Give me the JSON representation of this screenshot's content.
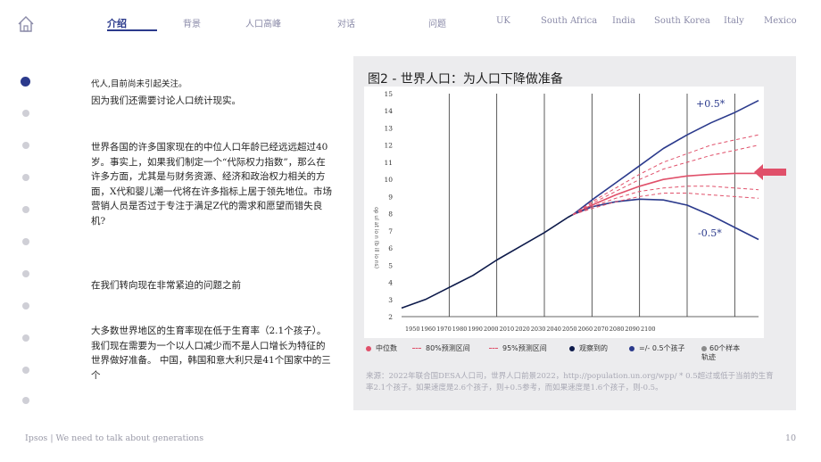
{
  "nav": {
    "items": [
      {
        "label": "介绍",
        "active": true
      },
      {
        "label": "背景",
        "active": false
      },
      {
        "label": "人口高峰",
        "active": false
      },
      {
        "label": "对话",
        "active": false
      },
      {
        "label": "问题",
        "active": false
      },
      {
        "label": "UK",
        "active": false
      },
      {
        "label": "South Africa",
        "active": false
      },
      {
        "label": "India",
        "active": false
      },
      {
        "label": "South Korea",
        "active": false
      },
      {
        "label": "Italy",
        "active": false
      },
      {
        "label": "Mexico",
        "active": false
      }
    ]
  },
  "left": {
    "p1a": "代人,目前尚未引起关注。",
    "p1b": "因为我们还需要讨论人口统计现实。",
    "p2": "世界各国的许多国家现在的中位人口年龄已经远远超过40岁。事实上，如果我们制定一个“代际权力指数”，那么在许多方面，尤其是与财务资源、经济和政治权力相关的方面，X代和婴儿潮一代将在许多指标上居于领先地位。市场营销人员是否过于专注于满足Z代的需求和愿望而错失良机?",
    "p3": "在我们转向现在非常紧迫的问题之前",
    "p4": "大多数世界地区的生育率现在低于生育率（2.1个孩子）。我们现在需要为一个以人口减少而不是人口增长为特征的世界做好准备。 中国，韩国和意大利只是41个国家中的三个"
  },
  "chart": {
    "title": "图2 - 世界人口：为人口下降做准备",
    "ylabel": "op ul at io n (b ill io ns)",
    "annot_plus": "+0.5*",
    "annot_minus": "-0.5*",
    "legend": [
      {
        "label": "中位数",
        "color": "#e0506a",
        "kind": "circle"
      },
      {
        "label": "80%预测区间",
        "color": "#e0506a",
        "kind": "dash"
      },
      {
        "label": "95%预测区间",
        "color": "#e0506a",
        "kind": "dash"
      },
      {
        "label": "观察到的",
        "color": "#0d1a4a",
        "kind": "circle"
      },
      {
        "label": "=/- 0.5个孩子",
        "color": "#2b3a8c",
        "kind": "circle"
      },
      {
        "label": "60个样本轨迹",
        "color": "#8a8a8a",
        "kind": "circle"
      }
    ],
    "source": "来源：2022年联合国DESA人口司，世界人口前景2022，http://population.un.org/wpp/ * 0.5超过或低于当前的生育率2.1个孩子。如果速度是2.6个孩子，则+0.5参考，而如果速度是1.6个孩子，则-0.5。"
  },
  "chart_data": {
    "type": "line",
    "title": "图2 - 世界人口：为人口下降做准备",
    "ylim": [
      2,
      15
    ],
    "xlim": [
      1950,
      2100
    ],
    "y_ticks": [
      2,
      3,
      4,
      5,
      6,
      7,
      8,
      9,
      10,
      11,
      12,
      13,
      14,
      15
    ],
    "x_ticks": [
      1950,
      1960,
      1970,
      1980,
      1990,
      2000,
      2010,
      2020,
      2030,
      2040,
      2050,
      2060,
      2070,
      2080,
      2090,
      2100
    ],
    "grid_x": true,
    "series": [
      {
        "name": "观察到的",
        "color": "#0d1a4a",
        "style": "solid",
        "x": [
          1950,
          1960,
          1970,
          1980,
          1990,
          2000,
          2010,
          2020,
          2022
        ],
        "y": [
          2.5,
          3.0,
          3.7,
          4.4,
          5.3,
          6.1,
          6.9,
          7.8,
          7.95
        ]
      },
      {
        "name": "中位数",
        "color": "#e0506a",
        "style": "solid",
        "x": [
          2022,
          2030,
          2040,
          2050,
          2060,
          2070,
          2080,
          2090,
          2100
        ],
        "y": [
          7.95,
          8.5,
          9.1,
          9.6,
          10.0,
          10.2,
          10.3,
          10.35,
          10.35
        ]
      },
      {
        "name": "+0.5*",
        "color": "#2b3a8c",
        "style": "solid",
        "x": [
          2022,
          2030,
          2040,
          2050,
          2060,
          2070,
          2080,
          2090,
          2100
        ],
        "y": [
          7.95,
          8.8,
          9.8,
          10.8,
          11.8,
          12.6,
          13.3,
          13.9,
          14.6
        ]
      },
      {
        "name": "-0.5*",
        "color": "#2b3a8c",
        "style": "solid",
        "x": [
          2022,
          2030,
          2040,
          2050,
          2060,
          2070,
          2080,
          2090,
          2100
        ],
        "y": [
          7.95,
          8.4,
          8.7,
          8.85,
          8.8,
          8.5,
          7.9,
          7.2,
          6.5
        ]
      },
      {
        "name": "80%预测区间",
        "color": "#e0506a",
        "style": "dashed",
        "x": [
          2022,
          2030,
          2040,
          2050,
          2060,
          2070,
          2080,
          2090,
          2100
        ],
        "y": [
          7.95,
          8.6,
          9.3,
          10.0,
          10.6,
          11.0,
          11.4,
          11.7,
          12.0
        ]
      },
      {
        "name": "80%预测区间",
        "color": "#e0506a",
        "style": "dashed",
        "x": [
          2022,
          2030,
          2040,
          2050,
          2060,
          2070,
          2080,
          2090,
          2100
        ],
        "y": [
          7.95,
          8.4,
          8.9,
          9.3,
          9.5,
          9.6,
          9.6,
          9.5,
          9.4
        ]
      },
      {
        "name": "95%预测区间",
        "color": "#e0506a",
        "style": "dashed",
        "x": [
          2022,
          2030,
          2040,
          2050,
          2060,
          2070,
          2080,
          2090,
          2100
        ],
        "y": [
          7.95,
          8.7,
          9.5,
          10.3,
          11.0,
          11.5,
          12.0,
          12.3,
          12.6
        ]
      },
      {
        "name": "95%预测区间",
        "color": "#e0506a",
        "style": "dashed",
        "x": [
          2022,
          2030,
          2040,
          2050,
          2060,
          2070,
          2080,
          2090,
          2100
        ],
        "y": [
          7.95,
          8.3,
          8.7,
          9.0,
          9.2,
          9.2,
          9.1,
          9.0,
          8.9
        ]
      }
    ]
  },
  "footer": {
    "left": "Ipsos | We need to talk about generations",
    "page": "10"
  },
  "colors": {
    "accent": "#2b3a8c",
    "median": "#e0506a",
    "arrow": "#e0506a",
    "panel": "#ececee"
  },
  "icons": {
    "home": "home-icon",
    "arrow": "arrow-left-icon"
  }
}
